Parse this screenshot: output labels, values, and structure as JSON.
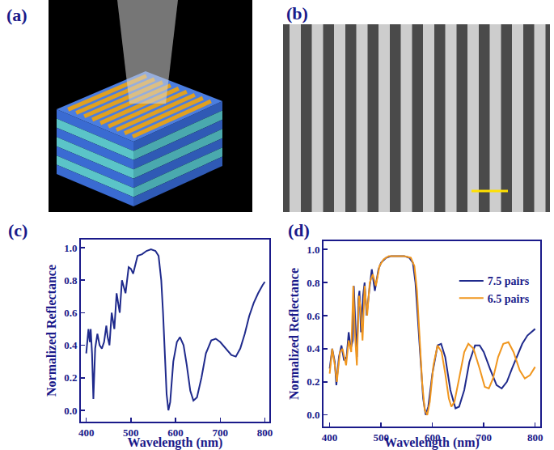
{
  "panel_a": {
    "label": "(a)"
  },
  "panel_b": {
    "label": "(b)"
  },
  "chart_data": [
    {
      "type": "line",
      "title": "(c)",
      "xlabel": "Wavelength (nm)",
      "ylabel": "Normalized Reflectance",
      "x": [
        400,
        405,
        408,
        410,
        413,
        416,
        420,
        425,
        430,
        435,
        440,
        445,
        448,
        452,
        457,
        460,
        463,
        468,
        472,
        475,
        480,
        485,
        488,
        495,
        500,
        505,
        515,
        525,
        535,
        545,
        555,
        562,
        568,
        572,
        576,
        580,
        584,
        588,
        595,
        603,
        610,
        618,
        625,
        633,
        640,
        648,
        658,
        668,
        680,
        690,
        700,
        712,
        725,
        735,
        745,
        755,
        765,
        775,
        785,
        795,
        800
      ],
      "values": [
        0.35,
        0.5,
        0.42,
        0.5,
        0.35,
        0.07,
        0.38,
        0.47,
        0.4,
        0.38,
        0.42,
        0.52,
        0.45,
        0.4,
        0.6,
        0.55,
        0.5,
        0.72,
        0.65,
        0.6,
        0.8,
        0.75,
        0.72,
        0.88,
        0.87,
        0.84,
        0.95,
        0.96,
        0.98,
        0.99,
        0.98,
        0.95,
        0.8,
        0.6,
        0.35,
        0.1,
        0.0,
        0.05,
        0.3,
        0.42,
        0.45,
        0.4,
        0.28,
        0.12,
        0.06,
        0.08,
        0.2,
        0.35,
        0.43,
        0.44,
        0.42,
        0.38,
        0.34,
        0.33,
        0.38,
        0.47,
        0.58,
        0.66,
        0.72,
        0.77,
        0.79
      ],
      "color": "#1f2a8c",
      "xlim": [
        388,
        810
      ],
      "ylim": [
        -0.07,
        1.05
      ],
      "xticks": [
        400,
        500,
        600,
        700,
        800
      ],
      "yticks": [
        {
          "value": 0,
          "label": "0.0"
        },
        0.2,
        0.4,
        0.6,
        0.8,
        {
          "value": 1,
          "label": "1.0"
        }
      ],
      "grid": false
    },
    {
      "type": "line",
      "title": "(d)",
      "xlabel": "Wavelength (nm)",
      "ylabel": "Normalized Reflectance",
      "series": [
        {
          "name": "7.5 pairs",
          "color": "#1f2a8c",
          "x": [
            400,
            405,
            410,
            413,
            418,
            423,
            428,
            433,
            437,
            441,
            445,
            447,
            450,
            453,
            456,
            458,
            461,
            465,
            468,
            472,
            477,
            482,
            488,
            495,
            500,
            510,
            520,
            530,
            545,
            555,
            562,
            567,
            572,
            577,
            582,
            587,
            592,
            600,
            610,
            617,
            625,
            635,
            645,
            652,
            662,
            672,
            683,
            692,
            700,
            712,
            725,
            735,
            745,
            755,
            765,
            775,
            785,
            800
          ],
          "values": [
            0.28,
            0.4,
            0.32,
            0.18,
            0.35,
            0.42,
            0.33,
            0.35,
            0.5,
            0.4,
            0.45,
            0.78,
            0.55,
            0.35,
            0.7,
            0.75,
            0.5,
            0.72,
            0.8,
            0.6,
            0.75,
            0.88,
            0.75,
            0.88,
            0.92,
            0.95,
            0.96,
            0.96,
            0.96,
            0.95,
            0.92,
            0.8,
            0.55,
            0.3,
            0.1,
            0.0,
            0.05,
            0.25,
            0.42,
            0.43,
            0.35,
            0.15,
            0.04,
            0.05,
            0.15,
            0.32,
            0.42,
            0.42,
            0.38,
            0.28,
            0.18,
            0.16,
            0.2,
            0.28,
            0.36,
            0.43,
            0.48,
            0.52
          ]
        },
        {
          "name": "6.5 pairs",
          "color": "#f0961e",
          "x": [
            400,
            405,
            410,
            414,
            420,
            425,
            432,
            437,
            442,
            446,
            449,
            453,
            457,
            460,
            464,
            468,
            473,
            478,
            484,
            490,
            497,
            505,
            515,
            530,
            545,
            558,
            565,
            570,
            575,
            580,
            585,
            590,
            595,
            602,
            610,
            618,
            625,
            632,
            637,
            643,
            652,
            662,
            670,
            680,
            692,
            702,
            710,
            718,
            728,
            738,
            748,
            758,
            770,
            780,
            790,
            800
          ],
          "values": [
            0.25,
            0.4,
            0.3,
            0.2,
            0.38,
            0.4,
            0.3,
            0.45,
            0.38,
            0.78,
            0.5,
            0.3,
            0.72,
            0.65,
            0.45,
            0.78,
            0.6,
            0.8,
            0.85,
            0.78,
            0.9,
            0.94,
            0.96,
            0.96,
            0.96,
            0.95,
            0.9,
            0.75,
            0.5,
            0.2,
            0.03,
            0.0,
            0.08,
            0.3,
            0.42,
            0.38,
            0.25,
            0.1,
            0.05,
            0.08,
            0.22,
            0.38,
            0.43,
            0.4,
            0.28,
            0.17,
            0.16,
            0.22,
            0.35,
            0.43,
            0.44,
            0.38,
            0.27,
            0.22,
            0.24,
            0.29
          ]
        }
      ],
      "xlim": [
        388,
        810
      ],
      "ylim": [
        -0.07,
        1.05
      ],
      "xticks": [
        400,
        500,
        600,
        700,
        800
      ],
      "yticks": [
        {
          "value": 0,
          "label": "0.0"
        },
        0.2,
        0.4,
        0.6,
        0.8,
        {
          "value": 1,
          "label": "1.0"
        }
      ],
      "grid": false,
      "legend": "upper right"
    }
  ]
}
